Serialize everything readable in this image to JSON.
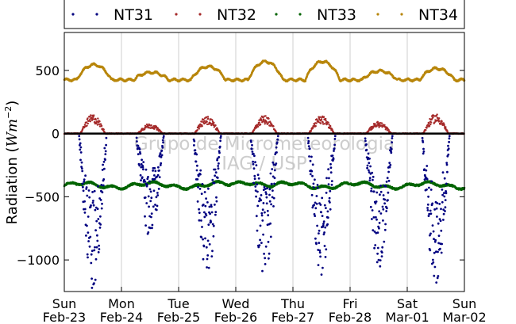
{
  "chart_data": {
    "type": "scatter",
    "ylabel_text": "Radiation (",
    "ylabel_math": "Wm",
    "ylabel_exp": "−2",
    "ylabel_close": ")",
    "ylim": [
      -1250,
      800
    ],
    "yticks": [
      500,
      0,
      -500,
      -1000
    ],
    "ytick_labels": [
      "500",
      "0",
      "−500",
      "−1000"
    ],
    "xlim": [
      0,
      7
    ],
    "xticks": [
      {
        "day": "Sun",
        "date": "Feb-23"
      },
      {
        "day": "Mon",
        "date": "Feb-24"
      },
      {
        "day": "Tue",
        "date": "Feb-25"
      },
      {
        "day": "Wed",
        "date": "Feb-26"
      },
      {
        "day": "Thu",
        "date": "Feb-27"
      },
      {
        "day": "Fri",
        "date": "Feb-28"
      },
      {
        "day": "Sat",
        "date": "Mar-01"
      },
      {
        "day": "Sun",
        "date": "Mar-02"
      }
    ],
    "grid": "vertical",
    "legend_placement": "top",
    "zero_line": 0,
    "watermark": [
      "Grupo de Micrometeorologia",
      "IAG / USP"
    ],
    "series": [
      {
        "name": "NT31",
        "color": "#000080",
        "style": "scattered dots",
        "night": -400,
        "day_min": [
          -1200,
          -790,
          -1080,
          -1090,
          -1070,
          -1030,
          -1170
        ]
      },
      {
        "name": "NT32",
        "color": "#a52a2a",
        "style": "scattered dots",
        "night": 0,
        "day_max": [
          145,
          75,
          130,
          140,
          135,
          90,
          150
        ]
      },
      {
        "name": "NT33",
        "color": "#006400",
        "style": "dense line",
        "base": -410,
        "range": [
          -445,
          -355
        ]
      },
      {
        "name": "NT34",
        "color": "#b8860b",
        "style": "dense line",
        "night": 425,
        "day_peaks": [
          545,
          485,
          530,
          570,
          570,
          495,
          515
        ]
      }
    ]
  }
}
